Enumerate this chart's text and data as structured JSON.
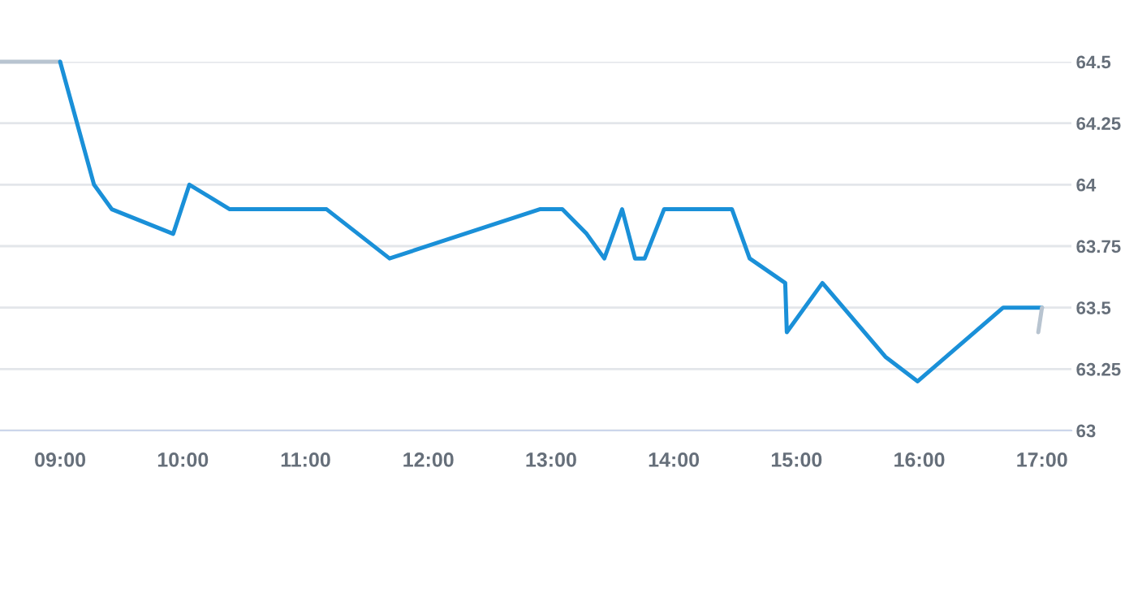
{
  "chart_data": {
    "type": "line",
    "series": [
      {
        "color": "#b8c4d0",
        "x": [
          8.51,
          9.0
        ],
        "values": [
          64.5,
          64.5
        ]
      },
      {
        "color": "#1a90d8",
        "x": [
          9.0,
          9.276,
          9.421,
          9.921,
          10.053,
          10.382,
          11.171,
          11.684,
          12.908,
          13.092,
          13.29,
          13.434,
          13.579,
          13.684,
          13.763,
          13.921,
          14.474,
          14.618,
          14.908,
          14.921,
          15.211,
          15.724,
          15.987,
          16.684,
          17.0
        ],
        "values": [
          64.5,
          64.0,
          63.9,
          63.8,
          64.0,
          63.9,
          63.9,
          63.7,
          63.9,
          63.9,
          63.8,
          63.7,
          63.9,
          63.7,
          63.7,
          63.9,
          63.9,
          63.7,
          63.6,
          63.4,
          63.6,
          63.3,
          63.2,
          63.5,
          63.5
        ]
      },
      {
        "color": "#b8c4d0",
        "x": [
          17.0,
          16.97
        ],
        "values": [
          63.5,
          63.4
        ]
      }
    ],
    "xlim": [
      8.51,
      17.24
    ],
    "xticks": [
      {
        "value": 9,
        "label": "09:00"
      },
      {
        "value": 10,
        "label": "10:00"
      },
      {
        "value": 11,
        "label": "11:00"
      },
      {
        "value": 12,
        "label": "12:00"
      },
      {
        "value": 13,
        "label": "13:00"
      },
      {
        "value": 14,
        "label": "14:00"
      },
      {
        "value": 15,
        "label": "15:00"
      },
      {
        "value": 16,
        "label": "16:00"
      },
      {
        "value": 17,
        "label": "17:00"
      }
    ],
    "ylim": [
      63,
      64.5
    ],
    "yticks": [
      63,
      63.25,
      63.5,
      63.75,
      64,
      64.25,
      64.5
    ],
    "grid": "y",
    "marker": "none",
    "line_style": "solid",
    "legend": false
  }
}
